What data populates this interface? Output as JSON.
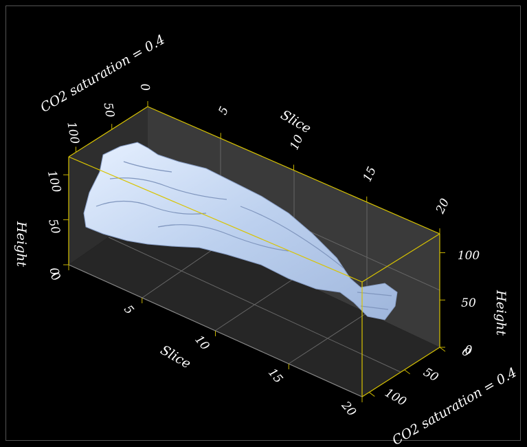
{
  "axes": {
    "height_left": {
      "label": "Height",
      "ticks": [
        0,
        50,
        100
      ]
    },
    "height_right": {
      "label": "Height",
      "ticks": [
        0,
        50,
        100
      ]
    },
    "slice_top": {
      "label": "Slice",
      "ticks": [
        5,
        10,
        15,
        20
      ]
    },
    "slice_bottom": {
      "label": "Slice",
      "ticks": [
        0,
        5,
        10,
        15,
        20
      ]
    },
    "co2_top": {
      "label": "CO2 saturation = 0.4",
      "ticks": [
        100,
        50,
        0
      ]
    },
    "co2_bottom": {
      "label": "CO2 saturation = 0.4",
      "ticks": [
        0,
        50,
        100
      ]
    }
  }
}
